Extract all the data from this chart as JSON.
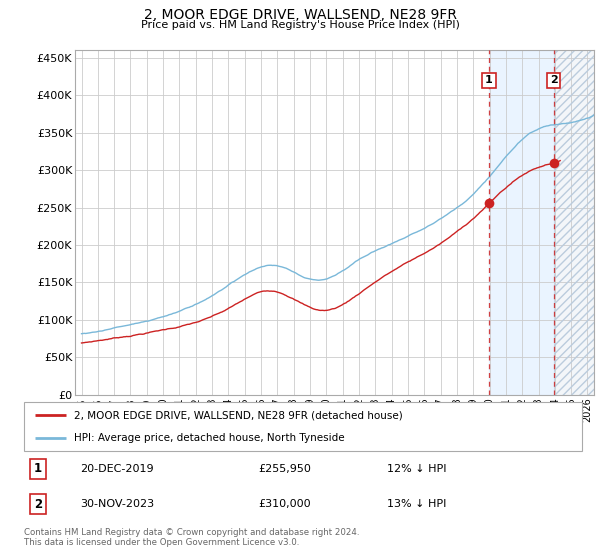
{
  "title": "2, MOOR EDGE DRIVE, WALLSEND, NE28 9FR",
  "subtitle": "Price paid vs. HM Land Registry's House Price Index (HPI)",
  "ylim": [
    0,
    460000
  ],
  "yticks": [
    0,
    50000,
    100000,
    150000,
    200000,
    250000,
    300000,
    350000,
    400000,
    450000
  ],
  "ytick_labels": [
    "£0",
    "£50K",
    "£100K",
    "£150K",
    "£200K",
    "£250K",
    "£300K",
    "£350K",
    "£400K",
    "£450K"
  ],
  "hpi_color": "#7ab8d9",
  "price_color": "#cc2222",
  "marker_color": "#cc2222",
  "sale1_year": 2019.97,
  "sale1_price": 255950,
  "sale2_year": 2023.92,
  "sale2_price": 310000,
  "vline_color": "#cc2222",
  "shade_color": "#ddeeff",
  "legend_label1": "2, MOOR EDGE DRIVE, WALLSEND, NE28 9FR (detached house)",
  "legend_label2": "HPI: Average price, detached house, North Tyneside",
  "annotation1_date": "20-DEC-2019",
  "annotation1_price": "£255,950",
  "annotation1_hpi": "12% ↓ HPI",
  "annotation2_date": "30-NOV-2023",
  "annotation2_price": "£310,000",
  "annotation2_hpi": "13% ↓ HPI",
  "footnote": "Contains HM Land Registry data © Crown copyright and database right 2024.\nThis data is licensed under the Open Government Licence v3.0."
}
